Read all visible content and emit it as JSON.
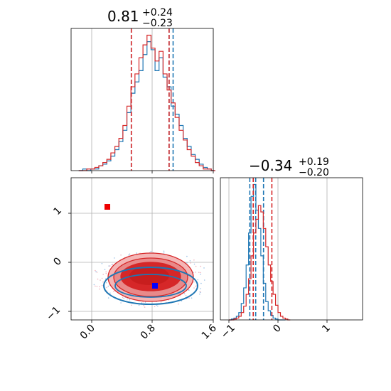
{
  "chart_data": [
    {
      "type": "histogram",
      "panel": "top-left",
      "title": {
        "value": "0.81",
        "plus": "+0.24",
        "minus": "−0.23"
      },
      "xlim": [
        -0.17,
        1.6
      ],
      "xticks": [
        0.0,
        0.8,
        1.6
      ],
      "series": [
        {
          "color": "#1f77b4",
          "quantile_lines": [
            0.58,
            1.05,
            1.1
          ],
          "x": [
            -0.05,
            0.0,
            0.05,
            0.1,
            0.15,
            0.2,
            0.25,
            0.3,
            0.35,
            0.4,
            0.45,
            0.5,
            0.55,
            0.6,
            0.65,
            0.7,
            0.75,
            0.8,
            0.85,
            0.9,
            0.95,
            1.0,
            1.05,
            1.1,
            1.15,
            1.2,
            1.25,
            1.3,
            1.35,
            1.4,
            1.45,
            1.5,
            1.55,
            1.6
          ],
          "y": [
            0,
            1,
            0,
            1,
            1,
            3,
            4,
            6,
            9,
            13,
            18,
            25,
            36,
            48,
            55,
            62,
            72,
            80,
            75,
            62,
            70,
            58,
            52,
            40,
            35,
            28,
            20,
            15,
            10,
            7,
            4,
            2,
            1,
            0
          ]
        },
        {
          "color": "#d62728",
          "quantile_lines": [
            0.58,
            1.05
          ],
          "x": [
            -0.05,
            0.0,
            0.05,
            0.1,
            0.15,
            0.2,
            0.25,
            0.3,
            0.35,
            0.4,
            0.45,
            0.5,
            0.55,
            0.6,
            0.65,
            0.7,
            0.75,
            0.8,
            0.85,
            0.9,
            0.95,
            1.0,
            1.05,
            1.1,
            1.15,
            1.2,
            1.25,
            1.3,
            1.35,
            1.4,
            1.45,
            1.5,
            1.55,
            1.6
          ],
          "y": [
            0,
            0,
            1,
            1,
            2,
            3,
            5,
            7,
            11,
            15,
            20,
            28,
            40,
            52,
            60,
            70,
            78,
            84,
            76,
            68,
            74,
            60,
            50,
            42,
            33,
            25,
            19,
            13,
            9,
            5,
            3,
            1,
            1,
            0
          ]
        }
      ]
    },
    {
      "type": "contour",
      "panel": "bottom-left",
      "xlim": [
        -0.17,
        1.6
      ],
      "ylim": [
        -1.2,
        1.7
      ],
      "xticks": [
        0.0,
        0.8,
        1.6
      ],
      "yticks": [
        -1,
        0,
        1
      ],
      "series": [
        {
          "color": "#1f77b4",
          "center": [
            0.81,
            -0.42
          ],
          "truth_marker": [
            0.86,
            -0.48
          ]
        },
        {
          "color": "#d62728",
          "center": [
            0.81,
            -0.34
          ],
          "truth_marker": [
            0.21,
            1.1
          ]
        }
      ]
    },
    {
      "type": "histogram",
      "panel": "bottom-right",
      "title": {
        "value": "−0.34",
        "plus": "+0.19",
        "minus": "−0.20"
      },
      "xlim": [
        -1.2,
        1.7
      ],
      "xticks": [
        -1,
        0,
        1
      ],
      "series": [
        {
          "color": "#1f77b4",
          "quantile_lines": [
            -0.6,
            -0.48,
            -0.32
          ],
          "x": [
            -1.0,
            -0.95,
            -0.9,
            -0.85,
            -0.8,
            -0.75,
            -0.7,
            -0.65,
            -0.6,
            -0.55,
            -0.5,
            -0.45,
            -0.4,
            -0.35,
            -0.3,
            -0.25,
            -0.2,
            -0.15,
            -0.1,
            -0.05,
            0.0,
            0.05,
            0.1
          ],
          "y": [
            0,
            1,
            2,
            4,
            8,
            18,
            35,
            60,
            95,
            135,
            148,
            120,
            100,
            70,
            40,
            20,
            10,
            5,
            2,
            1,
            0,
            0,
            0
          ]
        },
        {
          "color": "#d62728",
          "quantile_lines": [
            -0.53,
            -0.15
          ],
          "x": [
            -1.0,
            -0.95,
            -0.9,
            -0.85,
            -0.8,
            -0.75,
            -0.7,
            -0.65,
            -0.6,
            -0.55,
            -0.5,
            -0.45,
            -0.4,
            -0.35,
            -0.3,
            -0.25,
            -0.2,
            -0.15,
            -0.1,
            -0.05,
            0.0,
            0.05,
            0.1,
            0.15,
            0.2
          ],
          "y": [
            0,
            0,
            1,
            2,
            4,
            8,
            15,
            28,
            45,
            70,
            95,
            110,
            125,
            118,
            100,
            80,
            60,
            42,
            28,
            16,
            8,
            4,
            2,
            1,
            0
          ]
        }
      ]
    }
  ]
}
